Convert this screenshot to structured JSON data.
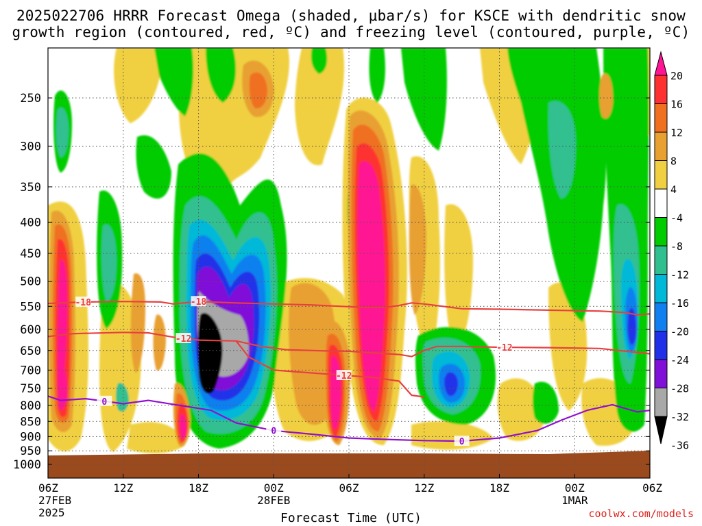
{
  "title_line1": "2025022706 HRRR Forecast Omega (shaded, μbar/s) for KSCE with dendritic snow",
  "title_line2": "growth region (contoured, red, ºC) and freezing level (contoured, purple, ºC)",
  "credit": "coolwx.com/models",
  "chart_data": {
    "type": "heatmap",
    "xlabel": "Forecast Time (UTC)",
    "ylabel": "",
    "y_scale": "log-pressure (mb), reversed",
    "x_ticks": [
      {
        "t": 0,
        "label": "06Z",
        "sub1": "27FEB",
        "sub2": "2025"
      },
      {
        "t": 6,
        "label": "12Z"
      },
      {
        "t": 12,
        "label": "18Z"
      },
      {
        "t": 18,
        "label": "00Z",
        "sub1": "28FEB"
      },
      {
        "t": 24,
        "label": "06Z"
      },
      {
        "t": 30,
        "label": "12Z"
      },
      {
        "t": 36,
        "label": "18Z"
      },
      {
        "t": 42,
        "label": "00Z",
        "sub1": "1MAR"
      },
      {
        "t": 48,
        "label": "06Z"
      }
    ],
    "y_ticks": [
      250,
      300,
      350,
      400,
      450,
      500,
      550,
      600,
      650,
      700,
      750,
      800,
      850,
      900,
      950,
      1000
    ],
    "colorbar": {
      "labels": [
        "20",
        "16",
        "12",
        "8",
        "4",
        "-4",
        "-8",
        "-12",
        "-16",
        "-20",
        "-24",
        "-28",
        "-32",
        "-36"
      ],
      "colors": [
        "#ff1493",
        "#ff3030",
        "#f07020",
        "#e8a030",
        "#f0d040",
        "#ffffff",
        "#00cc00",
        "#30c090",
        "#00b8d8",
        "#1080f0",
        "#2030e8",
        "#8010d8",
        "#a8a8a8",
        "#000000"
      ]
    },
    "contours": [
      {
        "name": "",
        "label": "-18",
        "color": "#e84040",
        "points": [
          [
            -1,
            545
          ],
          [
            3,
            541
          ],
          [
            6,
            540
          ],
          [
            9,
            541
          ],
          [
            10,
            545
          ],
          [
            12,
            540
          ],
          [
            15,
            543
          ],
          [
            18,
            545
          ],
          [
            21,
            547
          ],
          [
            25,
            552
          ],
          [
            27,
            552
          ],
          [
            28,
            548
          ],
          [
            29,
            543
          ],
          [
            30,
            545
          ],
          [
            33,
            555
          ],
          [
            36,
            556
          ],
          [
            40,
            558
          ],
          [
            44,
            560
          ],
          [
            46,
            563
          ],
          [
            47,
            568
          ],
          [
            48,
            566
          ]
        ]
      },
      {
        "name": "",
        "label": "-12",
        "color": "#e84040",
        "points": [
          [
            -1,
            620
          ],
          [
            2,
            610
          ],
          [
            6,
            607
          ],
          [
            8,
            608
          ],
          [
            10,
            618
          ],
          [
            12,
            625
          ],
          [
            15,
            627
          ],
          [
            17,
            640
          ],
          [
            19,
            648
          ],
          [
            22,
            651
          ],
          [
            24,
            652
          ],
          [
            26,
            656
          ],
          [
            28,
            660
          ],
          [
            29,
            665
          ],
          [
            30,
            650
          ],
          [
            31,
            640
          ],
          [
            33,
            640
          ],
          [
            36,
            642
          ],
          [
            40,
            643
          ],
          [
            44,
            645
          ],
          [
            48,
            658
          ]
        ]
      },
      {
        "name": "",
        "label": "-12",
        "color": "#e84040",
        "points": [
          [
            15,
            627
          ],
          [
            16,
            666
          ],
          [
            18,
            700
          ],
          [
            20,
            705
          ],
          [
            22,
            710
          ],
          [
            24,
            715
          ],
          [
            26,
            720
          ],
          [
            28,
            730
          ],
          [
            29,
            770
          ],
          [
            30,
            775
          ]
        ]
      },
      {
        "name": "",
        "label": "0",
        "color": "#9010d0",
        "points": [
          [
            -1,
            760
          ],
          [
            1,
            785
          ],
          [
            3,
            780
          ],
          [
            5,
            790
          ],
          [
            6,
            795
          ],
          [
            8,
            785
          ],
          [
            10,
            797
          ],
          [
            13,
            815
          ],
          [
            15,
            855
          ],
          [
            18,
            880
          ],
          [
            21,
            892
          ],
          [
            24,
            905
          ],
          [
            27,
            910
          ],
          [
            30,
            914
          ],
          [
            33,
            916
          ],
          [
            36,
            905
          ],
          [
            39,
            880
          ],
          [
            41,
            845
          ],
          [
            43,
            815
          ],
          [
            45,
            798
          ],
          [
            47,
            820
          ],
          [
            48,
            815
          ]
        ]
      }
    ]
  }
}
